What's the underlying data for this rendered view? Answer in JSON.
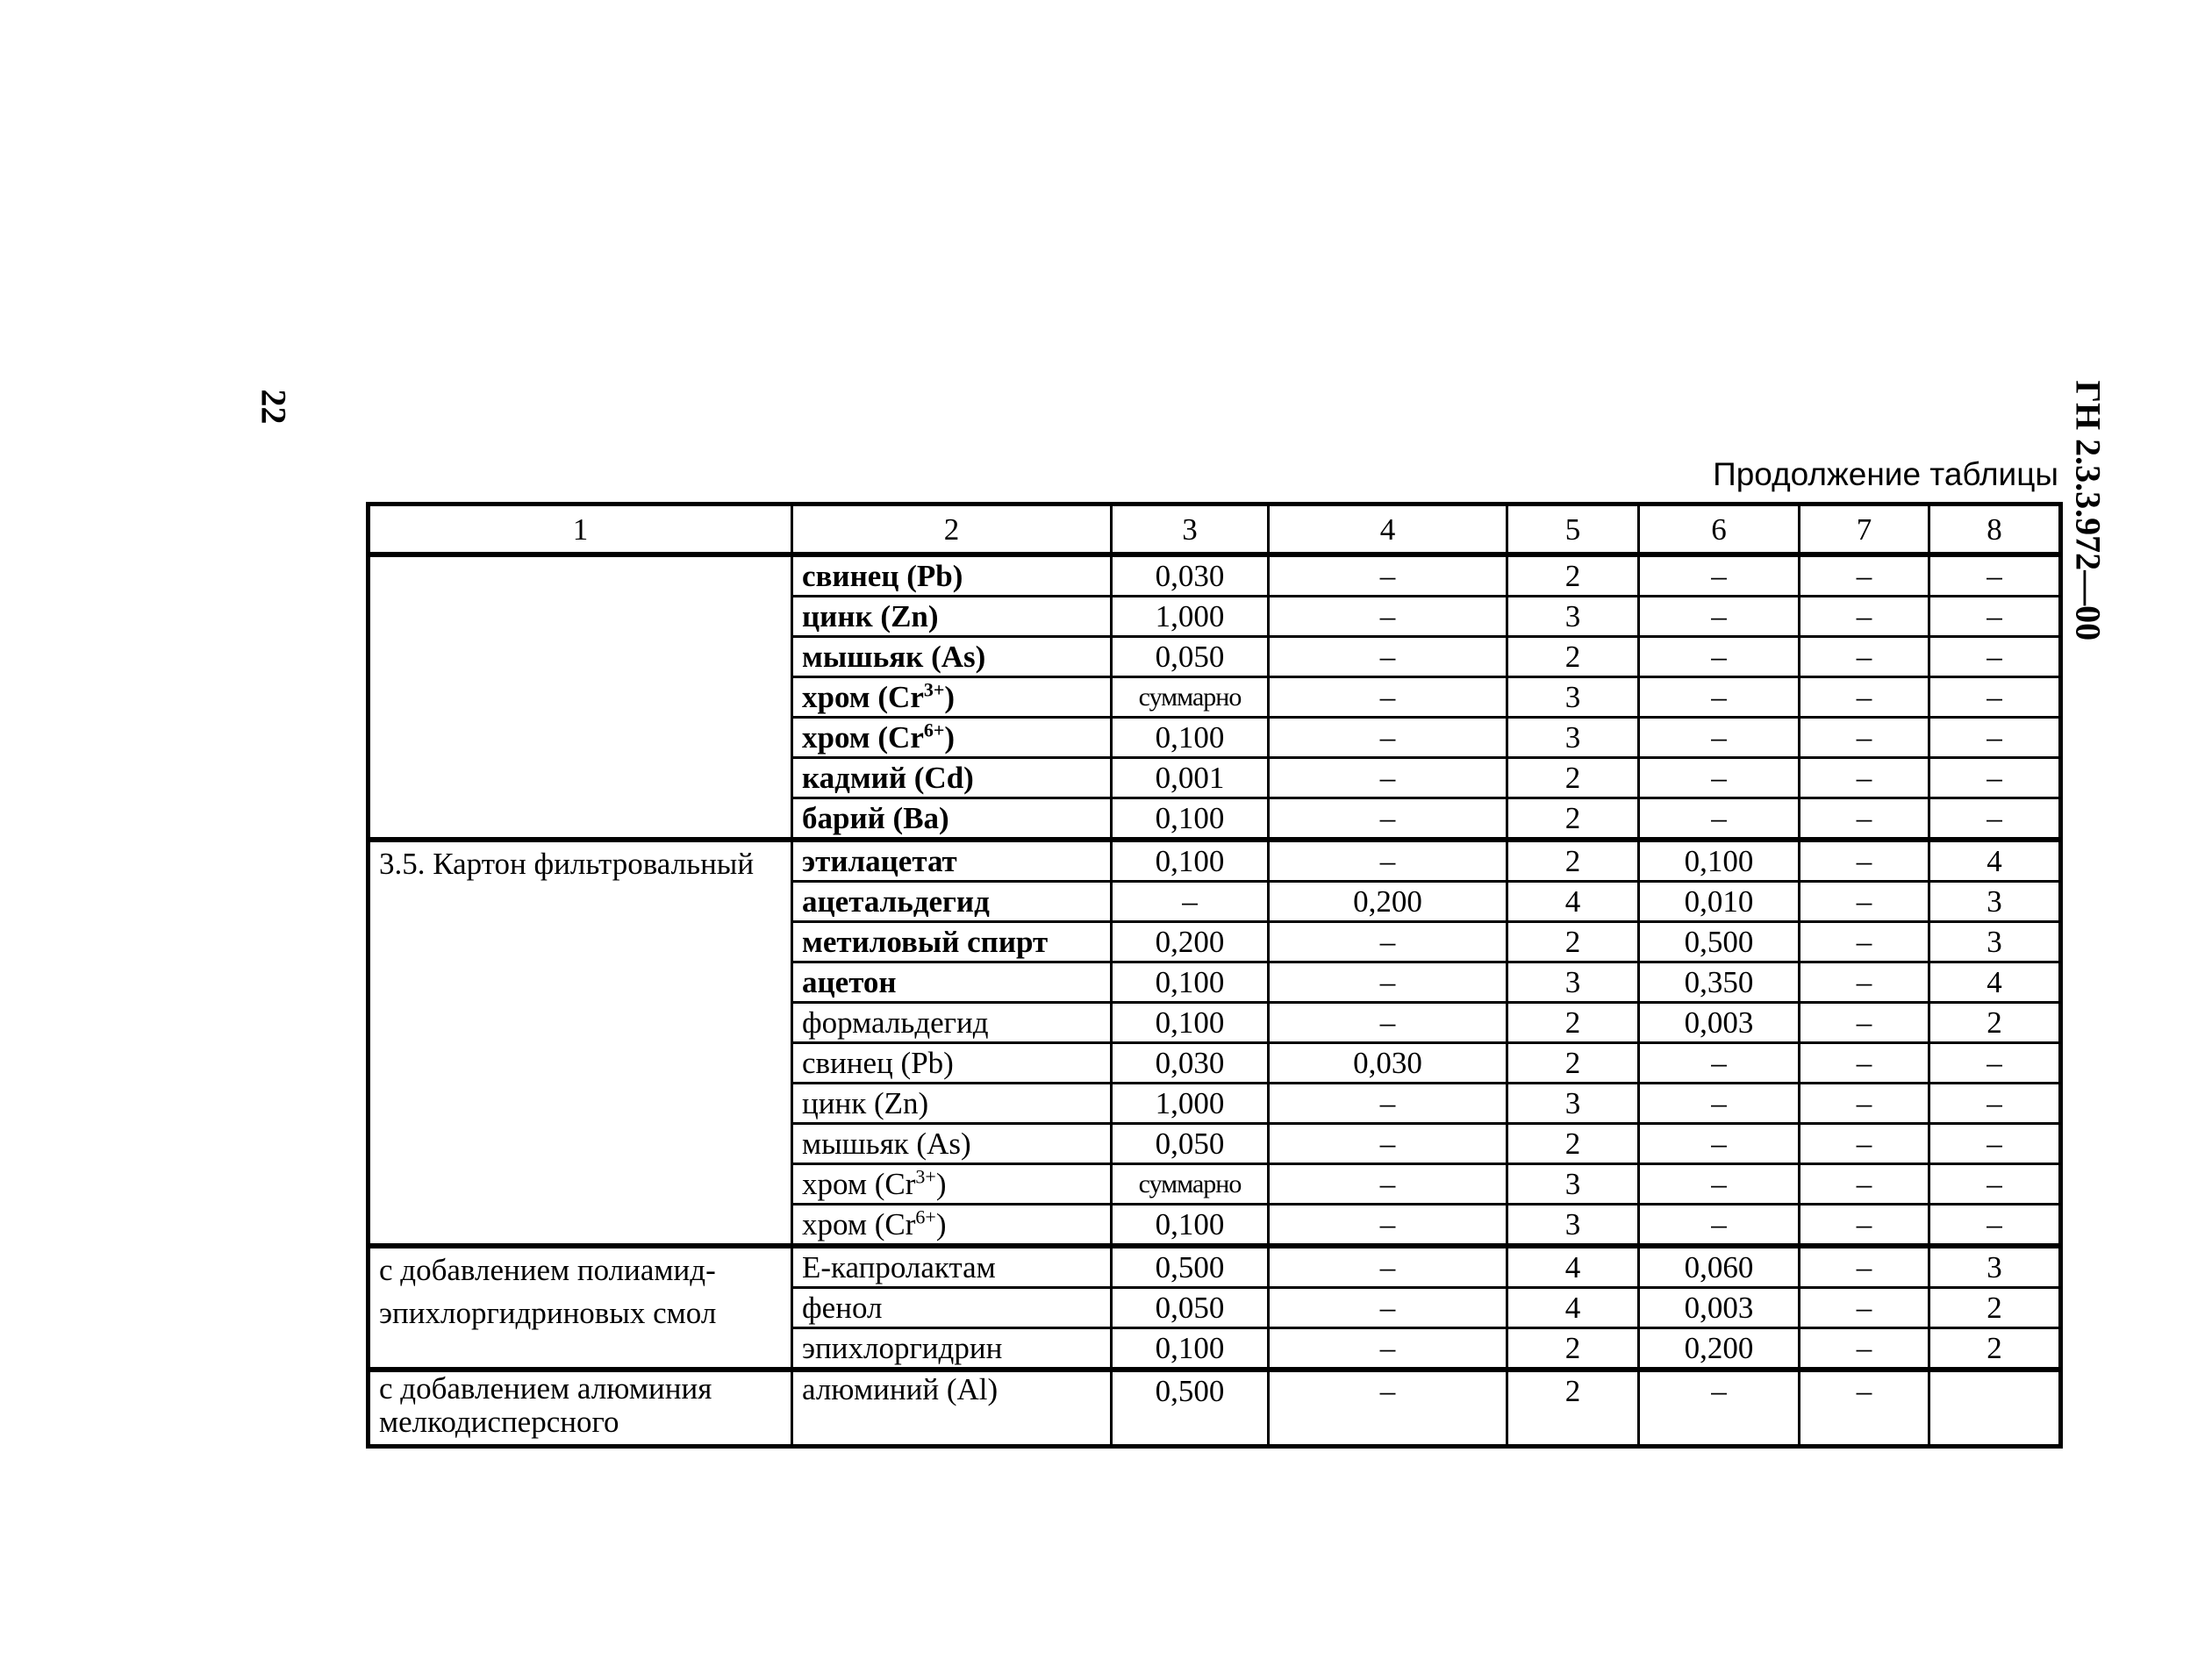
{
  "page_number": "22",
  "document_code": "ГН 2.3.3.972—00",
  "continuation_label": "Продолжение таблицы",
  "columns": [
    "1",
    "2",
    "3",
    "4",
    "5",
    "6",
    "7",
    "8"
  ],
  "groups": [
    {
      "label": "",
      "rows": [
        {
          "substance": "свинец (Pb)",
          "bold": true,
          "c3": "0,030",
          "c4": "–",
          "c5": "2",
          "c6": "–",
          "c7": "–",
          "c8": "–"
        },
        {
          "substance": "цинк (Zn)",
          "bold": true,
          "c3": "1,000",
          "c4": "–",
          "c5": "3",
          "c6": "–",
          "c7": "–",
          "c8": "–"
        },
        {
          "substance": "мышьяк (As)",
          "bold": true,
          "c3": "0,050",
          "c4": "–",
          "c5": "2",
          "c6": "–",
          "c7": "–",
          "c8": "–"
        },
        {
          "substance": "хром (Cr",
          "sup": "3+",
          "tail": ")",
          "bold": true,
          "c3": "суммарно",
          "c4": "–",
          "c5": "3",
          "c6": "–",
          "c7": "–",
          "c8": "–"
        },
        {
          "substance": "хром (Cr",
          "sup": "6+",
          "tail": ")",
          "bold": true,
          "c3": "0,100",
          "c4": "–",
          "c5": "3",
          "c6": "–",
          "c7": "–",
          "c8": "–"
        },
        {
          "substance": "кадмий (Cd)",
          "bold": true,
          "c3": "0,001",
          "c4": "–",
          "c5": "2",
          "c6": "–",
          "c7": "–",
          "c8": "–"
        },
        {
          "substance": "барий (Ba)",
          "bold": true,
          "c3": "0,100",
          "c4": "–",
          "c5": "2",
          "c6": "–",
          "c7": "–",
          "c8": "–"
        }
      ]
    },
    {
      "label": "3.5. Картон фильтровальный",
      "rows": [
        {
          "substance": "этилацетат",
          "bold": true,
          "c3": "0,100",
          "c4": "–",
          "c5": "2",
          "c6": "0,100",
          "c7": "–",
          "c8": "4"
        },
        {
          "substance": "ацетальдегид",
          "bold": true,
          "c3": "–",
          "c4": "0,200",
          "c5": "4",
          "c6": "0,010",
          "c7": "–",
          "c8": "3"
        },
        {
          "substance": "метиловый спирт",
          "bold": true,
          "c3": "0,200",
          "c4": "–",
          "c5": "2",
          "c6": "0,500",
          "c7": "–",
          "c8": "3"
        },
        {
          "substance": "ацетон",
          "bold": true,
          "c3": "0,100",
          "c4": "–",
          "c5": "3",
          "c6": "0,350",
          "c7": "–",
          "c8": "4"
        },
        {
          "substance": "формальдегид",
          "bold": false,
          "c3": "0,100",
          "c4": "–",
          "c5": "2",
          "c6": "0,003",
          "c7": "–",
          "c8": "2"
        },
        {
          "substance": "свинец (Pb)",
          "bold": false,
          "c3": "0,030",
          "c4": "0,030",
          "c5": "2",
          "c6": "–",
          "c7": "–",
          "c8": "–"
        },
        {
          "substance": "цинк (Zn)",
          "bold": false,
          "c3": "1,000",
          "c4": "–",
          "c5": "3",
          "c6": "–",
          "c7": "–",
          "c8": "–"
        },
        {
          "substance": "мышьяк (As)",
          "bold": false,
          "c3": "0,050",
          "c4": "–",
          "c5": "2",
          "c6": "–",
          "c7": "–",
          "c8": "–"
        },
        {
          "substance": "хром (Cr",
          "sup": "3+",
          "tail": ")",
          "bold": false,
          "c3": "суммарно",
          "c4": "–",
          "c5": "3",
          "c6": "–",
          "c7": "–",
          "c8": "–"
        },
        {
          "substance": "хром (Cr",
          "sup": "6+",
          "tail": ")",
          "bold": false,
          "c3": "0,100",
          "c4": "–",
          "c5": "3",
          "c6": "–",
          "c7": "–",
          "c8": "–"
        }
      ]
    },
    {
      "label": "с добавлением полиамид-эпихлоргидриновых смол",
      "rows": [
        {
          "substance": "Е-капролактам",
          "bold": false,
          "c3": "0,500",
          "c4": "–",
          "c5": "4",
          "c6": "0,060",
          "c7": "–",
          "c8": "3"
        },
        {
          "substance": "фенол",
          "bold": false,
          "c3": "0,050",
          "c4": "–",
          "c5": "4",
          "c6": "0,003",
          "c7": "–",
          "c8": "2"
        },
        {
          "substance": "эпихлоргидрин",
          "bold": false,
          "c3": "0,100",
          "c4": "–",
          "c5": "2",
          "c6": "0,200",
          "c7": "–",
          "c8": "2"
        }
      ]
    },
    {
      "label": "с добавлением алюминия мелкодисперсного",
      "rows": [
        {
          "substance": "алюминий (Al)",
          "bold": false,
          "c3": "0,500",
          "c4": "–",
          "c5": "2",
          "c6": "–",
          "c7": "–",
          "c8": ""
        }
      ]
    }
  ]
}
